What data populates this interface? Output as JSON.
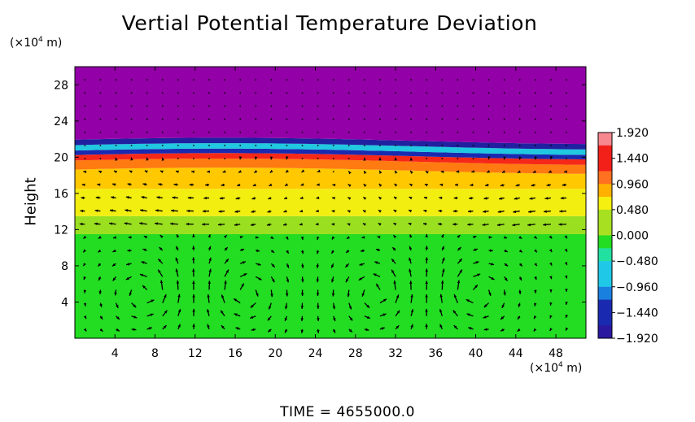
{
  "chart_data": {
    "type": "heatmap",
    "title": "Vertial Potential Temperature Deviation",
    "xlabel": "",
    "ylabel": "Height",
    "x_unit_prefix": "(×10",
    "x_unit_exp": "4",
    "x_unit_suffix": " m)",
    "y_unit_prefix": "(×10",
    "y_unit_exp": "4",
    "y_unit_suffix": " m)",
    "xlim": [
      0,
      51
    ],
    "ylim": [
      0,
      30
    ],
    "x_ticks": [
      4,
      8,
      12,
      16,
      20,
      24,
      28,
      32,
      36,
      40,
      44,
      48
    ],
    "y_ticks": [
      4,
      8,
      12,
      16,
      20,
      24,
      28
    ],
    "colorbar": {
      "labels": [
        "1.920",
        "1.440",
        "0.960",
        "0.480",
        "0.000",
        "−0.480",
        "−0.960",
        "−1.440",
        "−1.920"
      ],
      "range": [
        -1.92,
        1.92
      ]
    },
    "field_layers": [
      {
        "height_range": [
          0,
          11.5
        ],
        "value": 0.1,
        "color": "#22dd22"
      },
      {
        "height_range": [
          11.5,
          13.5
        ],
        "value": 0.5,
        "color": "#9ae020"
      },
      {
        "height_range": [
          13.5,
          16.5
        ],
        "value": 0.85,
        "color": "#f2ee10"
      },
      {
        "height_range": [
          16.5,
          18.5
        ],
        "value": 1.1,
        "color": "#ffc800"
      },
      {
        "height_range": [
          18.5,
          19.5
        ],
        "value": 1.4,
        "color": "#ff7a10"
      },
      {
        "height_range": [
          19.5,
          20.1
        ],
        "value": 1.85,
        "color": "#f62818"
      },
      {
        "height_range": [
          20.1,
          20.6
        ],
        "value": -1.5,
        "color": "#1a2ab0"
      },
      {
        "height_range": [
          20.6,
          21.2
        ],
        "value": -0.5,
        "color": "#20c8e0"
      },
      {
        "height_range": [
          21.2,
          21.8
        ],
        "value": -1.7,
        "color": "#2020a0"
      },
      {
        "height_range": [
          21.8,
          30
        ],
        "value": -1.92,
        "color": "#9400a8"
      }
    ],
    "vortex_centers_x": [
      7,
      17,
      30,
      40
    ],
    "time_label": "TIME  =  4655000.0"
  }
}
